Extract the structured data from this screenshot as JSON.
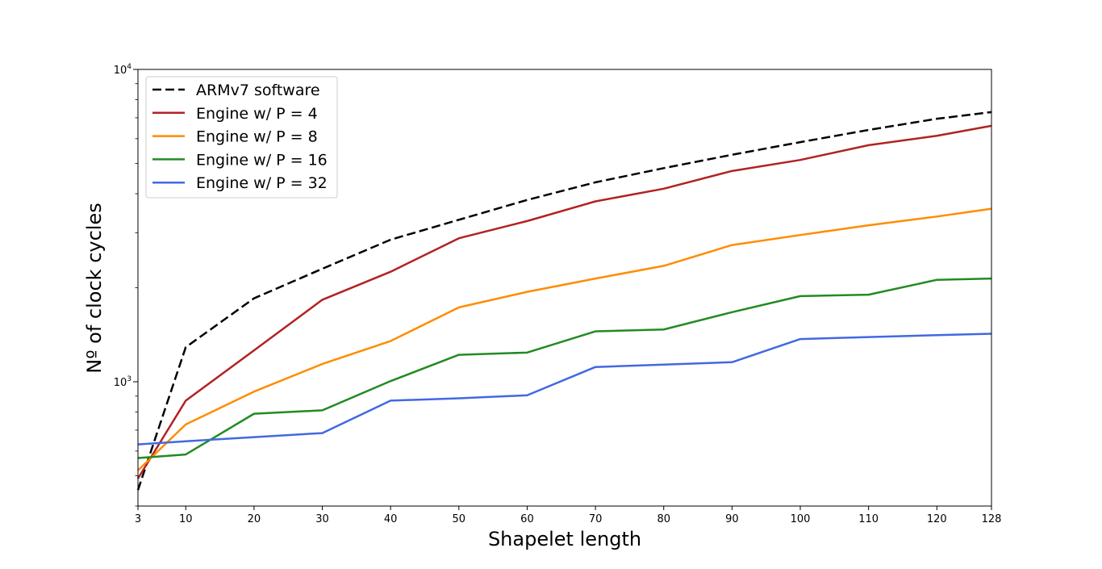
{
  "chart_data": {
    "type": "line",
    "title": "",
    "xlabel": "Shapelet length",
    "ylabel": "Nº of clock cycles",
    "x": [
      3,
      10,
      20,
      30,
      40,
      50,
      60,
      70,
      80,
      90,
      100,
      110,
      120,
      128
    ],
    "x_ticks": [
      "3",
      "10",
      "20",
      "30",
      "40",
      "50",
      "60",
      "70",
      "80",
      "90",
      "100",
      "110",
      "120",
      "128"
    ],
    "xlim": [
      3,
      128
    ],
    "yscale": "log",
    "ylim": [
      400,
      10000
    ],
    "y_ticks": [
      {
        "value": 1000,
        "base": "10",
        "exp": "3"
      },
      {
        "value": 10000,
        "base": "10",
        "exp": "4"
      }
    ],
    "legend_position": "top-left",
    "grid": false,
    "series": [
      {
        "name": "ARMv7 software",
        "color": "#000000",
        "dash": true,
        "values": [
          450,
          1290,
          1850,
          2300,
          2850,
          3300,
          3820,
          4350,
          4830,
          5330,
          5850,
          6400,
          6950,
          7300
        ]
      },
      {
        "name": "Engine w/ P = 4",
        "color": "#b22222",
        "dash": false,
        "values": [
          490,
          870,
          1260,
          1830,
          2250,
          2880,
          3270,
          3780,
          4150,
          4730,
          5130,
          5720,
          6130,
          6600
        ]
      },
      {
        "name": "Engine w/ P = 8",
        "color": "#ff8c00",
        "dash": false,
        "values": [
          520,
          730,
          930,
          1140,
          1350,
          1730,
          1940,
          2140,
          2350,
          2740,
          2950,
          3170,
          3380,
          3580
        ]
      },
      {
        "name": "Engine w/ P = 16",
        "color": "#228b22",
        "dash": false,
        "values": [
          570,
          585,
          790,
          810,
          1005,
          1220,
          1240,
          1450,
          1470,
          1670,
          1880,
          1900,
          2120,
          2140
        ]
      },
      {
        "name": "Engine w/ P = 32",
        "color": "#4169e1",
        "dash": false,
        "values": [
          630,
          645,
          665,
          685,
          870,
          885,
          905,
          1115,
          1135,
          1155,
          1370,
          1390,
          1410,
          1425
        ]
      }
    ]
  }
}
